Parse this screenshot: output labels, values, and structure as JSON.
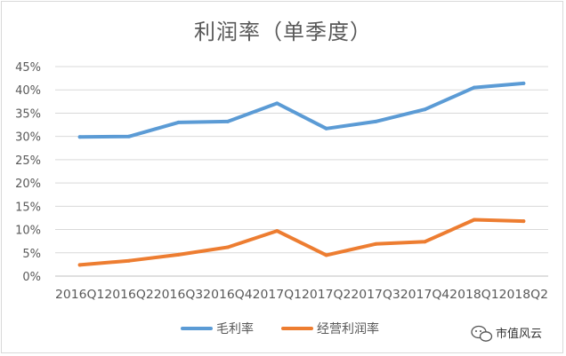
{
  "watermark": {
    "text": "市值风云",
    "icon": "wechat-bubble-icon"
  },
  "chart_data": {
    "type": "line",
    "title": "利润率（单季度）",
    "xlabel": "",
    "ylabel": "",
    "categories": [
      "2016Q1",
      "2016Q2",
      "2016Q3",
      "2016Q4",
      "2017Q1",
      "2017Q2",
      "2017Q3",
      "2017Q4",
      "2018Q1",
      "2018Q2"
    ],
    "ylim": [
      0,
      45
    ],
    "yticks": [
      0,
      5,
      10,
      15,
      20,
      25,
      30,
      35,
      40,
      45
    ],
    "ytick_labels": [
      "0%",
      "5%",
      "10%",
      "15%",
      "20%",
      "25%",
      "30%",
      "35%",
      "40%",
      "45%"
    ],
    "grid": true,
    "legend_position": "bottom",
    "series": [
      {
        "name": "毛利率",
        "color": "#5b9bd5",
        "values": [
          29.9,
          30.0,
          33.0,
          33.2,
          37.1,
          31.7,
          33.2,
          35.8,
          40.5,
          41.4
        ]
      },
      {
        "name": "经营利润率",
        "color": "#ed7d31",
        "values": [
          2.4,
          3.3,
          4.6,
          6.2,
          9.7,
          4.5,
          6.9,
          7.4,
          12.1,
          11.8
        ]
      }
    ]
  }
}
